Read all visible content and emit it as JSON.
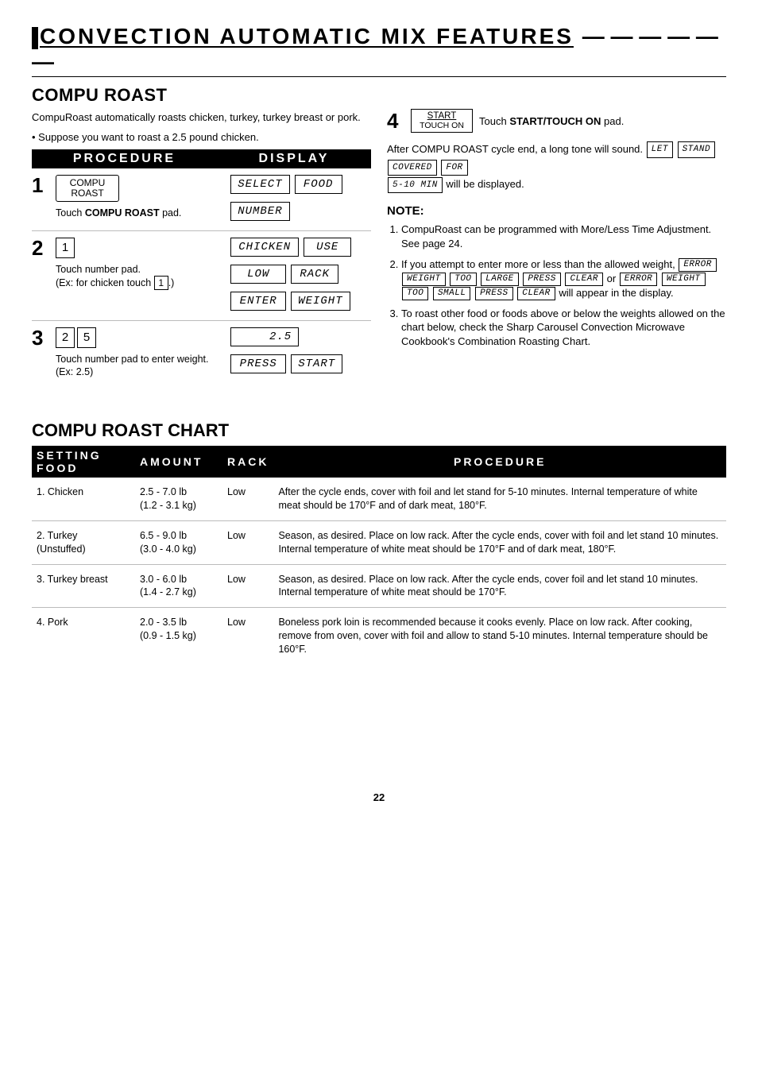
{
  "page_header": "CONVECTION AUTOMATIC MIX FEATURES",
  "header_dashes": "— — — — — —",
  "section_title": "COMPU ROAST",
  "intro": "CompuRoast automatically roasts chicken, turkey, turkey breast or pork.",
  "bullet": "Suppose you want to roast a 2.5 pound chicken.",
  "proc_hdr_left": "PROCEDURE",
  "proc_hdr_right": "DISPLAY",
  "steps": {
    "s1": {
      "num": "1",
      "btn_line1": "COMPU",
      "btn_line2": "ROAST",
      "caption": "Touch COMPU ROAST pad.",
      "disp1a": "SELECT",
      "disp1b": "FOOD",
      "disp2": "NUMBER"
    },
    "s2": {
      "num": "2",
      "key": "1",
      "caption1": "Touch number pad.",
      "caption2": "(Ex: for chicken touch",
      "caption3": ".)",
      "disp1a": "CHICKEN",
      "disp1b": "USE",
      "disp2a": "LOW",
      "disp2b": "RACK",
      "disp3a": "ENTER",
      "disp3b": "WEIGHT"
    },
    "s3": {
      "num": "3",
      "key1": "2",
      "key2": "5",
      "caption": "Touch number pad to enter weight. (Ex: 2.5)",
      "disp1": "2.5",
      "disp2a": "PRESS",
      "disp2b": "START"
    },
    "s4": {
      "num": "4",
      "btn_line1": "START",
      "btn_line2": "TOUCH ON",
      "text_pre": "Touch ",
      "text_bold": "START/TOUCH ON",
      "text_post": " pad."
    }
  },
  "after": {
    "line1a": "After COMPU ROAST cycle end, a long tone will sound.",
    "d1": "LET",
    "d2": "STAND",
    "d3": "COVERED",
    "d4": "FOR",
    "d5": "5-10 MIN",
    "line2": " will be displayed."
  },
  "note_title": "NOTE:",
  "notes": {
    "n1": "CompuRoast can be programmed with More/Less Time Adjustment. See page 24.",
    "n2_pre": "If you attempt to enter more or less than the allowed weight,",
    "n2_d1": "ERROR",
    "n2_d2": "WEIGHT",
    "n2_d3": "TOO",
    "n2_d4": "LARGE",
    "n2_d5": "PRESS",
    "n2_d6": "CLEAR",
    "n2_or": "or",
    "n2_d7": "ERROR",
    "n2_d8": "WEIGHT",
    "n2_d9": "TOO",
    "n2_d10": "SMALL",
    "n2_d11": "PRESS",
    "n2_d12": "CLEAR",
    "n2_post": " will appear in the display.",
    "n3": "To roast other food or foods above or below the weights allowed on the chart below, check the Sharp Carousel Convection Microwave Cookbook's Combination Roasting Chart."
  },
  "chart_title": "COMPU ROAST CHART",
  "chart_hdr": {
    "c1": "SETTING FOOD",
    "c2": "AMOUNT",
    "c3": "RACK",
    "c4": "PROCEDURE"
  },
  "chart_rows": [
    {
      "food": "1. Chicken",
      "amount": "2.5 - 7.0 lb\n(1.2 - 3.1 kg)",
      "rack": "Low",
      "proc": "After the cycle ends, cover with foil and let stand for 5-10 minutes. Internal temperature of white meat should be 170°F and of dark meat, 180°F."
    },
    {
      "food": "2. Turkey\n(Unstuffed)",
      "amount": "6.5 - 9.0 lb\n(3.0 - 4.0 kg)",
      "rack": "Low",
      "proc": "Season, as desired. Place on low rack. After the cycle ends, cover with foil and let stand 10 minutes. Internal temperature of white meat should be 170°F and of dark meat, 180°F."
    },
    {
      "food": "3. Turkey breast",
      "amount": "3.0 - 6.0 lb\n(1.4 - 2.7 kg)",
      "rack": "Low",
      "proc": "Season, as desired. Place on low rack. After the cycle ends, cover foil and let stand 10 minutes. Internal temperature of white meat should be 170°F."
    },
    {
      "food": "4. Pork",
      "amount": "2.0 - 3.5 lb\n(0.9 - 1.5 kg)",
      "rack": "Low",
      "proc": "Boneless pork loin is recommended because it cooks evenly. Place on low rack. After cooking, remove from oven, cover with foil and allow to stand 5-10 minutes. Internal temperature should be 160°F."
    }
  ],
  "page_num": "22",
  "caption_key_inline": "1"
}
